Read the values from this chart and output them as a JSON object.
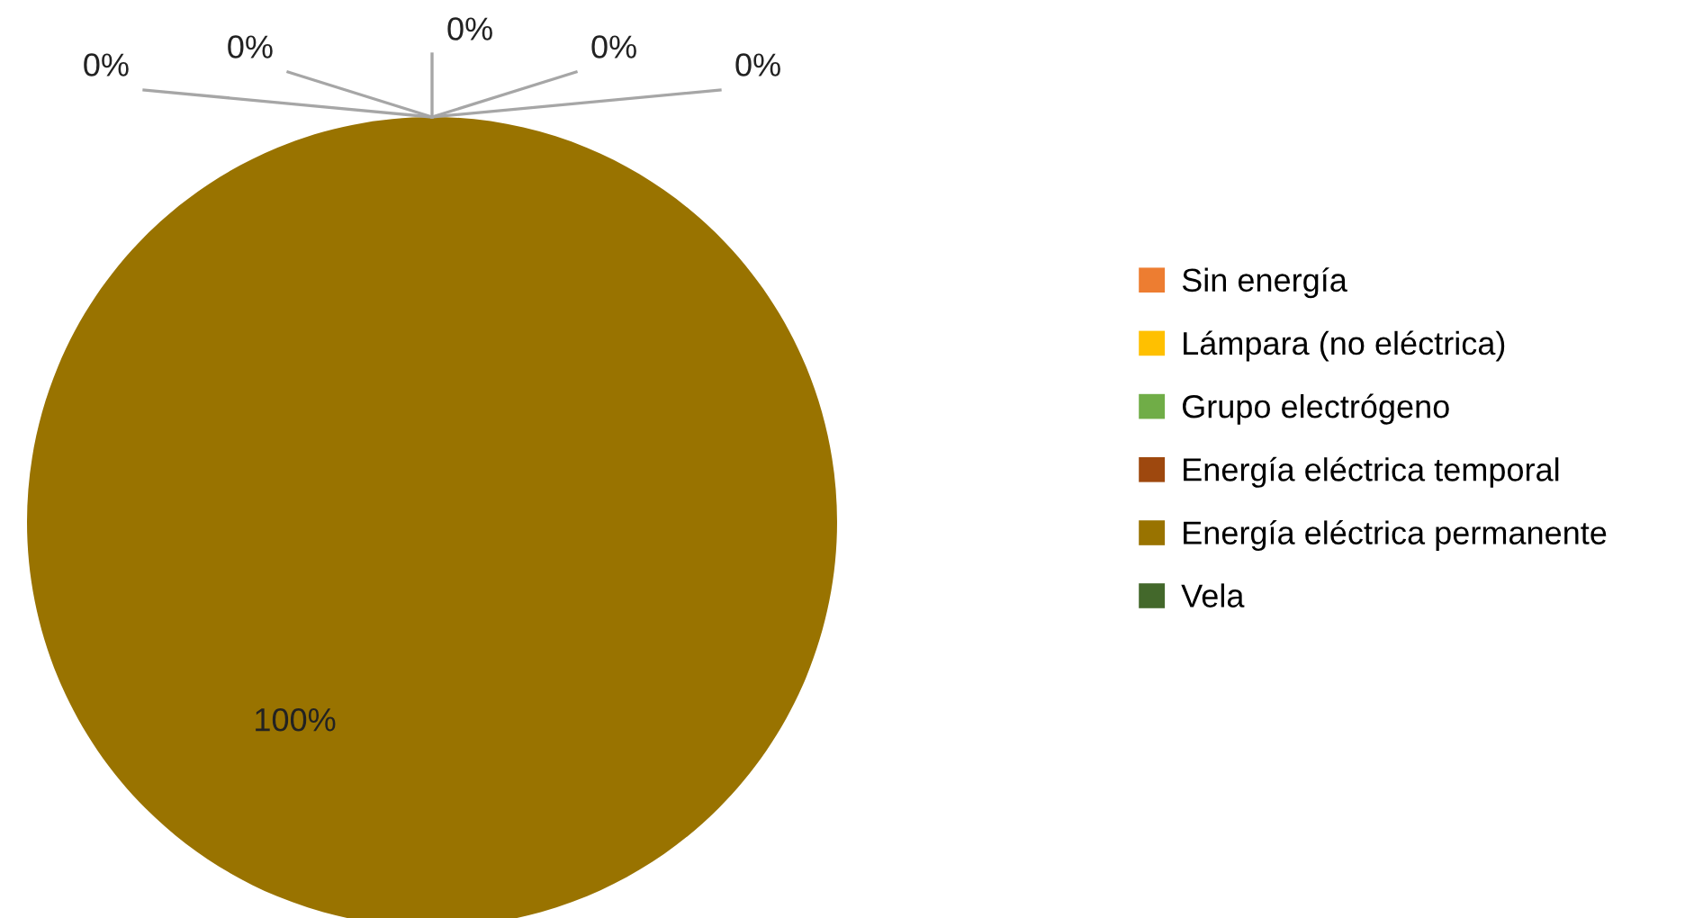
{
  "chart_data": {
    "type": "pie",
    "categories": [
      "Sin energía",
      "Lámpara (no eléctrica)",
      "Grupo electrógeno",
      "Energía eléctrica temporal",
      "Energía eléctrica permanente",
      "Vela"
    ],
    "values": [
      0,
      0,
      0,
      0,
      100,
      0
    ],
    "colors": [
      "#ed7d31",
      "#ffc000",
      "#70ad47",
      "#9e480e",
      "#997300",
      "#43682b"
    ],
    "value_labels": [
      "0%",
      "0%",
      "0%",
      "0%",
      "100%",
      "0%"
    ],
    "legend": "right"
  }
}
